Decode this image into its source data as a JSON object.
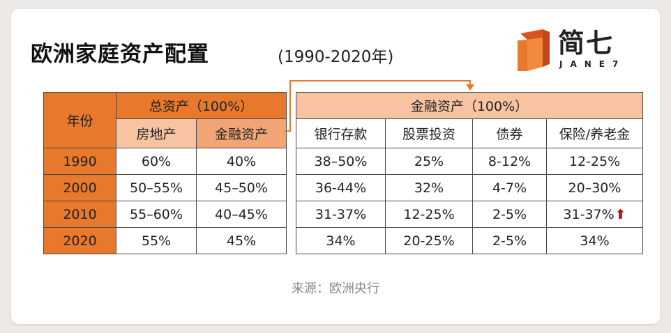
{
  "title": "欧洲家庭资产配置",
  "subtitle": "(1990-2020年)",
  "logo": {
    "name": "简七",
    "sub": "JANE7"
  },
  "colors": {
    "header_dark": "#e8782b",
    "header_light": "#f7c3a1",
    "header_mid": "#f2a574",
    "arrow": "#c40f0f"
  },
  "left_table": {
    "year_header": "年份",
    "total_header": "总资产（100%）",
    "col_headers": [
      "房地产",
      "金融资产"
    ],
    "rows": [
      {
        "year": "1990",
        "values": [
          "60%",
          "40%"
        ]
      },
      {
        "year": "2000",
        "values": [
          "50–55%",
          "45–50%"
        ]
      },
      {
        "year": "2010",
        "values": [
          "55–60%",
          "40–45%"
        ]
      },
      {
        "year": "2020",
        "values": [
          "55%",
          "45%"
        ]
      }
    ]
  },
  "right_table": {
    "header": "金融资产（100%）",
    "col_headers": [
      "银行存款",
      "股票投资",
      "债券",
      "保险/养老金"
    ],
    "rows": [
      [
        "38–50%",
        "25%",
        "8-12%",
        "12-25%"
      ],
      [
        "36-44%",
        "32%",
        "4-7%",
        "20–30%"
      ],
      [
        "31-37%",
        "12-25%",
        "2-5%",
        "31-37%"
      ],
      [
        "34%",
        "20-25%",
        "2-5%",
        "34%"
      ]
    ],
    "up_arrow_icon": "up-arrow-icon"
  },
  "source": "来源：欧洲央行"
}
